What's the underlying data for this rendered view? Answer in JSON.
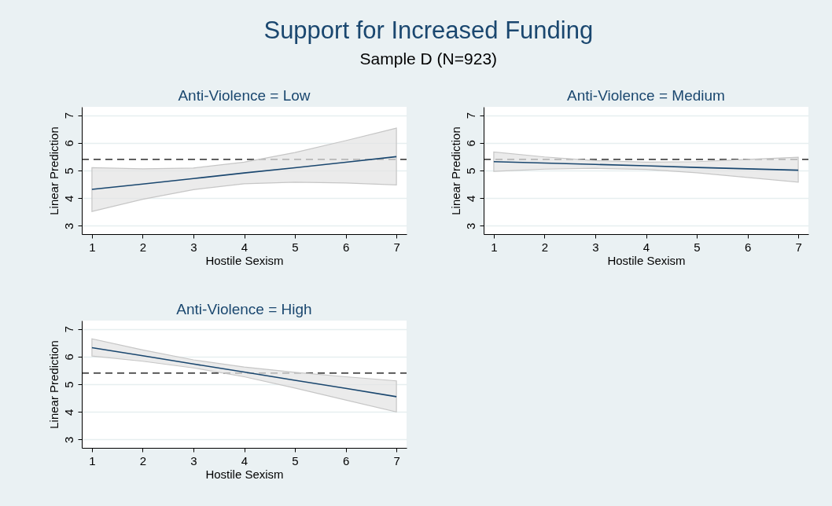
{
  "chart_data": [
    {
      "type": "other",
      "title": "Support for Increased Funding",
      "subtitle": "Sample D (N=923)"
    },
    {
      "type": "line",
      "title": "Anti-Violence = Low",
      "xlabel": "Hostile Sexism",
      "ylabel": "Linear Prediction",
      "x": [
        1,
        2,
        3,
        4,
        5,
        6,
        7
      ],
      "series": [
        {
          "color": "#1a476f",
          "values": [
            4.32,
            4.51,
            4.71,
            4.91,
            5.1,
            5.3,
            5.5
          ],
          "lower": [
            3.52,
            3.96,
            4.31,
            4.52,
            4.58,
            4.55,
            4.48
          ],
          "upper": [
            5.1,
            5.06,
            5.09,
            5.3,
            5.65,
            6.08,
            6.53
          ]
        }
      ],
      "xlim": [
        0.8,
        7.2
      ],
      "ylim": [
        2.7,
        7.3
      ],
      "xticks": [
        1,
        2,
        3,
        4,
        5,
        6,
        7
      ],
      "yticks": [
        3,
        4,
        5,
        6,
        7
      ],
      "grid": "y",
      "ref_lines": [
        {
          "axis": "y",
          "value": 5.4,
          "color": "#000000",
          "line_style": "dashed"
        }
      ]
    },
    {
      "type": "line",
      "title": "Anti-Violence = Medium",
      "xlabel": "Hostile Sexism",
      "ylabel": "Linear Prediction",
      "x": [
        1,
        2,
        3,
        4,
        5,
        6,
        7
      ],
      "series": [
        {
          "color": "#1a476f",
          "values": [
            5.32,
            5.27,
            5.22,
            5.17,
            5.11,
            5.06,
            5.01
          ],
          "lower": [
            4.97,
            5.05,
            5.08,
            5.04,
            4.92,
            4.75,
            4.58
          ],
          "upper": [
            5.67,
            5.49,
            5.36,
            5.3,
            5.32,
            5.4,
            5.48
          ]
        }
      ],
      "xlim": [
        0.8,
        7.2
      ],
      "ylim": [
        2.7,
        7.3
      ],
      "xticks": [
        1,
        2,
        3,
        4,
        5,
        6,
        7
      ],
      "yticks": [
        3,
        4,
        5,
        6,
        7
      ],
      "grid": "y",
      "ref_lines": [
        {
          "axis": "y",
          "value": 5.4,
          "color": "#000000",
          "line_style": "dashed"
        }
      ]
    },
    {
      "type": "line",
      "title": "Anti-Violence = High",
      "xlabel": "Hostile Sexism",
      "ylabel": "Linear Prediction",
      "x": [
        1,
        2,
        3,
        4,
        5,
        6,
        7
      ],
      "series": [
        {
          "color": "#1a476f",
          "values": [
            6.32,
            6.03,
            5.73,
            5.44,
            5.14,
            4.85,
            4.55
          ],
          "lower": [
            6.02,
            5.83,
            5.59,
            5.27,
            4.86,
            4.43,
            4.0
          ],
          "upper": [
            6.64,
            6.24,
            5.88,
            5.62,
            5.43,
            5.27,
            5.12
          ]
        }
      ],
      "xlim": [
        0.8,
        7.2
      ],
      "ylim": [
        2.7,
        7.3
      ],
      "xticks": [
        1,
        2,
        3,
        4,
        5,
        6,
        7
      ],
      "yticks": [
        3,
        4,
        5,
        6,
        7
      ],
      "grid": "y",
      "ref_lines": [
        {
          "axis": "y",
          "value": 5.4,
          "color": "#000000",
          "line_style": "dashed"
        }
      ]
    }
  ]
}
